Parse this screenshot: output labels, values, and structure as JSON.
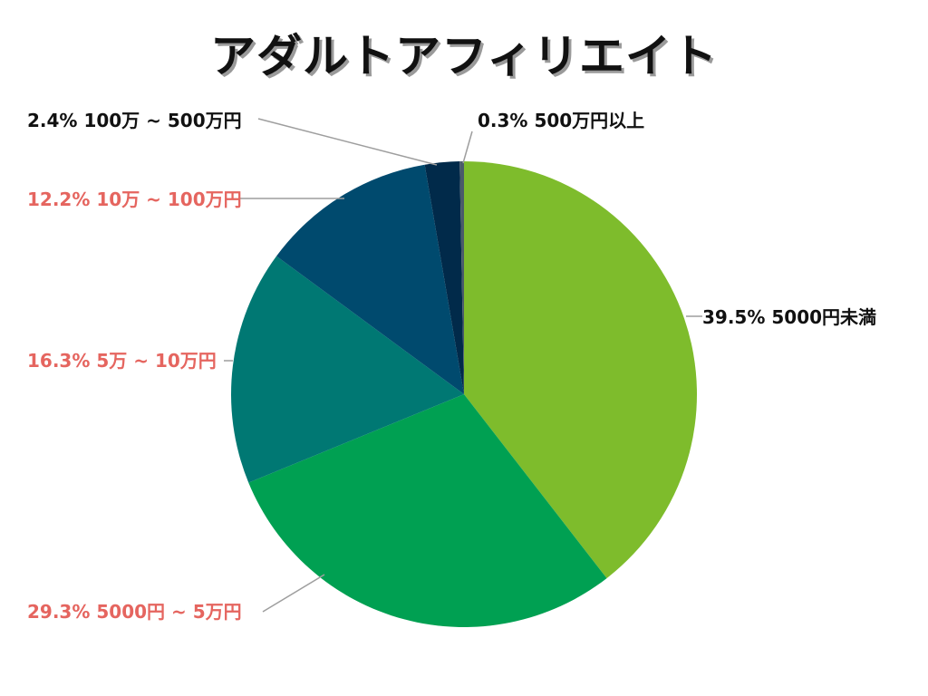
{
  "chart_data": {
    "type": "pie",
    "title": "アダルトアフィリエイト",
    "start_angle_deg": 0,
    "direction": "clockwise",
    "slices": [
      {
        "label": "5000円未満",
        "value": 39.5,
        "value_label": "39.5%",
        "color": "#7ebc2c",
        "label_color": "#111111"
      },
      {
        "label": "5000円 ~ 5万円",
        "value": 29.3,
        "value_label": "29.3%",
        "color": "#00a052",
        "label_color": "#e5655f"
      },
      {
        "label": "5万 ~ 10万円",
        "value": 16.3,
        "value_label": "16.3%",
        "color": "#007873",
        "label_color": "#e5655f"
      },
      {
        "label": "10万 ~ 100万円",
        "value": 12.2,
        "value_label": "12.2%",
        "color": "#004a6e",
        "label_color": "#e5655f"
      },
      {
        "label": "100万 ~ 500万円",
        "value": 2.4,
        "value_label": "2.4%",
        "color": "#012a4a",
        "label_color": "#111111"
      },
      {
        "label": "500万円以上",
        "value": 0.3,
        "value_label": "0.3%",
        "color": "#4a5a6a",
        "label_color": "#111111"
      }
    ]
  }
}
